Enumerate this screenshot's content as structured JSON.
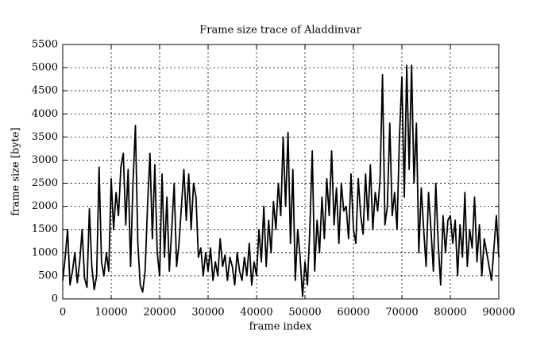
{
  "chart_data": {
    "type": "line",
    "title": "Frame size trace of Aladdinvar",
    "x_label": "frame index",
    "y_label": "frame size [byte]",
    "x": [
      0,
      500,
      1000,
      1500,
      2000,
      2500,
      3000,
      3500,
      4000,
      4500,
      5000,
      5500,
      6000,
      6500,
      7000,
      7500,
      8000,
      8500,
      9000,
      9500,
      10000,
      10500,
      11000,
      11500,
      12000,
      12500,
      13000,
      13500,
      14000,
      14500,
      15000,
      15500,
      16000,
      16500,
      17000,
      17500,
      18000,
      18500,
      19000,
      19500,
      20000,
      20500,
      21000,
      21500,
      22000,
      22500,
      23000,
      23500,
      24000,
      24500,
      25000,
      25500,
      26000,
      26500,
      27000,
      27500,
      28000,
      28500,
      29000,
      29500,
      30000,
      30500,
      31000,
      31500,
      32000,
      32500,
      33000,
      33500,
      34000,
      34500,
      35000,
      35500,
      36000,
      36500,
      37000,
      37500,
      38000,
      38500,
      39000,
      39500,
      40000,
      40500,
      41000,
      41500,
      42000,
      42500,
      43000,
      43500,
      44000,
      44500,
      45000,
      45500,
      46000,
      46500,
      47000,
      47500,
      48000,
      48500,
      49000,
      49500,
      50000,
      50500,
      51000,
      51500,
      52000,
      52500,
      53000,
      53500,
      54000,
      54500,
      55000,
      55500,
      56000,
      56500,
      57000,
      57500,
      58000,
      58500,
      59000,
      59500,
      60000,
      60500,
      61000,
      61500,
      62000,
      62500,
      63000,
      63500,
      64000,
      64500,
      65000,
      65500,
      66000,
      66500,
      67000,
      67500,
      68000,
      68500,
      69000,
      69500,
      70000,
      70500,
      71000,
      71500,
      72000,
      72500,
      73000,
      73500,
      74000,
      74500,
      75000,
      75500,
      76000,
      76500,
      77000,
      77500,
      78000,
      78500,
      79000,
      79500,
      80000,
      80500,
      81000,
      81500,
      82000,
      82500,
      83000,
      83500,
      84000,
      84500,
      85000,
      85500,
      86000,
      86500,
      87000,
      87500,
      88000,
      88500,
      89000,
      89500,
      90000
    ],
    "series": [
      {
        "color": "#000000",
        "values": [
          400,
          900,
          1500,
          300,
          600,
          1000,
          350,
          800,
          1500,
          450,
          250,
          1950,
          700,
          200,
          500,
          2850,
          800,
          500,
          1000,
          600,
          2600,
          1500,
          2300,
          1800,
          2850,
          3150,
          1600,
          2800,
          700,
          2500,
          3750,
          1200,
          300,
          150,
          600,
          2000,
          3150,
          1300,
          2900,
          1000,
          500,
          2700,
          900,
          2200,
          600,
          1500,
          2500,
          700,
          1200,
          2000,
          2800,
          1700,
          2700,
          1500,
          2500,
          2200,
          900,
          1100,
          500,
          1000,
          600,
          1100,
          400,
          800,
          500,
          1300,
          700,
          950,
          400,
          900,
          700,
          300,
          1000,
          600,
          400,
          900,
          500,
          1200,
          300,
          800,
          500,
          1500,
          800,
          2000,
          700,
          1700,
          1000,
          2100,
          1500,
          2500,
          1800,
          3500,
          2000,
          3600,
          1200,
          2800,
          400,
          1500,
          900,
          50,
          800,
          300,
          1500,
          3200,
          600,
          1700,
          1000,
          2200,
          1300,
          2600,
          1800,
          3200,
          1600,
          2400,
          1200,
          2500,
          1900,
          2000,
          1300,
          2700,
          1500,
          1200,
          2600,
          1800,
          1400,
          2700,
          1700,
          2900,
          1500,
          2300,
          1900,
          2600,
          4850,
          1600,
          2000,
          3800,
          1800,
          2300,
          1500,
          3500,
          4800,
          2200,
          5050,
          2800,
          5050,
          2500,
          3800,
          1000,
          2400,
          1500,
          700,
          2300,
          1500,
          600,
          2500,
          1200,
          300,
          1800,
          1000,
          1700,
          1800,
          1200,
          1700,
          500,
          1600,
          900,
          2300,
          700,
          1500,
          1100,
          2200,
          800,
          1600,
          500,
          1300,
          1000,
          700,
          400,
          1100,
          1800,
          900
        ]
      }
    ],
    "xlim": [
      0,
      90000
    ],
    "ylim": [
      0,
      5500
    ],
    "xticks": [
      0,
      10000,
      20000,
      30000,
      40000,
      50000,
      60000,
      70000,
      80000,
      90000
    ],
    "yticks": [
      0,
      500,
      1000,
      1500,
      2000,
      2500,
      3000,
      3500,
      4000,
      4500,
      5000,
      5500
    ],
    "grid": true
  }
}
